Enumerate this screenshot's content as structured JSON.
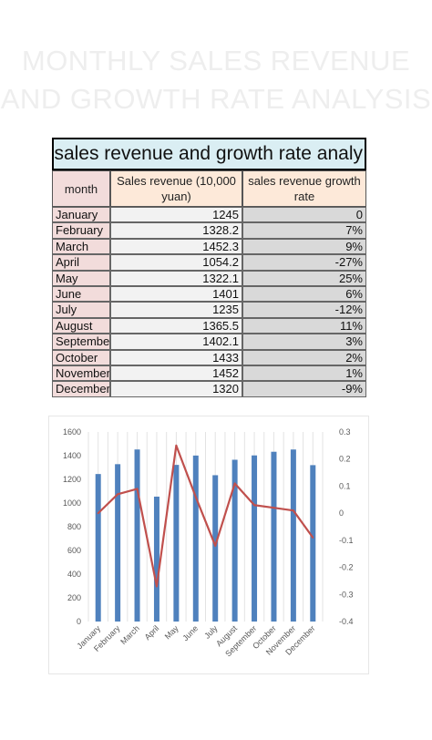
{
  "page_title": [
    "MONTHLY SALES REVENUE",
    "AND GROWTH RATE ANALYSIS"
  ],
  "table": {
    "title": "nthly sales revenue and growth rate analy",
    "headers": [
      "month",
      "Sales revenue (10,000 yuan)",
      "sales revenue growth rate"
    ],
    "rows": [
      {
        "month": "January",
        "revenue": "1245",
        "rate": "0"
      },
      {
        "month": "February",
        "revenue": "1328.2",
        "rate": "7%"
      },
      {
        "month": "March",
        "revenue": "1452.3",
        "rate": "9%"
      },
      {
        "month": "April",
        "revenue": "1054.2",
        "rate": "-27%"
      },
      {
        "month": "May",
        "revenue": "1322.1",
        "rate": "25%"
      },
      {
        "month": "June",
        "revenue": "1401",
        "rate": "6%"
      },
      {
        "month": "July",
        "revenue": "1235",
        "rate": "-12%"
      },
      {
        "month": "August",
        "revenue": "1365.5",
        "rate": "11%"
      },
      {
        "month": "September",
        "revenue": "1402.1",
        "rate": "3%"
      },
      {
        "month": "October",
        "revenue": "1433",
        "rate": "2%"
      },
      {
        "month": "November",
        "revenue": "1452",
        "rate": "1%"
      },
      {
        "month": "December",
        "revenue": "1320",
        "rate": "-9%"
      }
    ],
    "colors": {
      "title_bg": "#daeef3",
      "month_bg": "#f2dcdb",
      "revenue_bg": "#f2f2f2",
      "rate_bg": "#d9d9d9"
    }
  },
  "chart_data": {
    "type": "bar",
    "categories": [
      "January",
      "February",
      "March",
      "April",
      "May",
      "June",
      "July",
      "August",
      "September",
      "October",
      "November",
      "December"
    ],
    "series": [
      {
        "type": "bar",
        "axis": "left",
        "color": "#4f81bd",
        "values": [
          1245,
          1328.2,
          1452.3,
          1054.2,
          1322.1,
          1401,
          1235,
          1365.5,
          1402.1,
          1433,
          1452,
          1320
        ]
      },
      {
        "type": "line",
        "axis": "right",
        "color": "#c0504d",
        "values": [
          0,
          0.07,
          0.09,
          -0.27,
          0.25,
          0.06,
          -0.12,
          0.11,
          0.03,
          0.02,
          0.01,
          -0.09
        ]
      }
    ],
    "ylim_left": [
      0,
      1600
    ],
    "ylim_right": [
      -0.4,
      0.3
    ],
    "left_ticks": [
      "0",
      "200",
      "400",
      "600",
      "800",
      "1000",
      "1200",
      "1400",
      "1600"
    ],
    "right_ticks": [
      "-0.4",
      "-0.3",
      "-0.2",
      "-0.1",
      "0",
      "0.1",
      "0.2",
      "0.3"
    ],
    "grid": true,
    "title": "",
    "xlabel": "",
    "ylabel": ""
  }
}
